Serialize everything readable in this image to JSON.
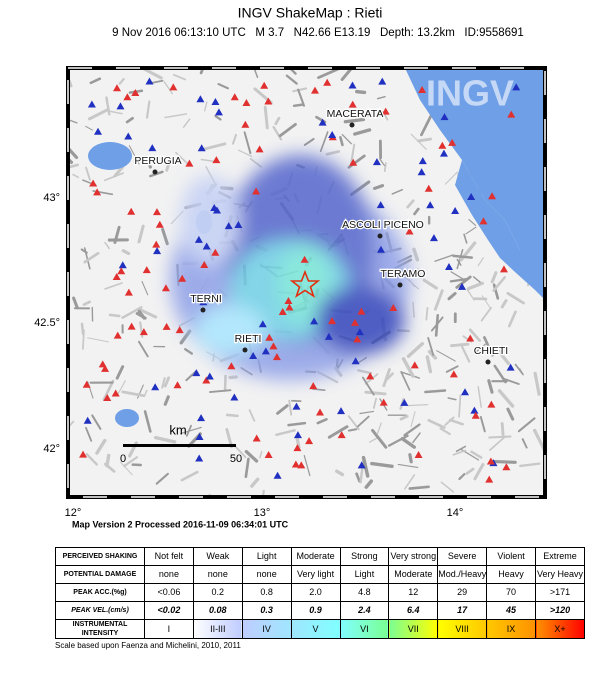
{
  "header": {
    "title": "INGV ShakeMap : Rieti",
    "subtitle": "9 Nov 2016 06:13:10 UTC   M 3.7   N42.66 E13.19   Depth: 13.2km   ID:9558691"
  },
  "map": {
    "watermark": "INGV",
    "lon_ticks": [
      "12°",
      "13°",
      "14°"
    ],
    "lat_ticks": [
      "43°",
      "42.5°",
      "42°"
    ],
    "cities": [
      "MACERATA",
      "PERUGIA",
      "ASCOLI PICENO",
      "TERAMO",
      "TERNI",
      "RIETI",
      "CHIETI"
    ],
    "scale": {
      "unit": "km",
      "start": "0",
      "end": "50"
    }
  },
  "version": "Map Version 2 Processed 2016-11-09 06:34:01 UTC",
  "table": {
    "rows": [
      [
        "PERCEIVED SHAKING",
        "Not felt",
        "Weak",
        "Light",
        "Moderate",
        "Strong",
        "Very strong",
        "Severe",
        "Violent",
        "Extreme"
      ],
      [
        "POTENTIAL DAMAGE",
        "none",
        "none",
        "none",
        "Very light",
        "Light",
        "Moderate",
        "Mod./Heavy",
        "Heavy",
        "Very Heavy"
      ],
      [
        "PEAK ACC.(%g)",
        "<0.06",
        "0.2",
        "0.8",
        "2.0",
        "4.8",
        "12",
        "29",
        "70",
        ">171"
      ],
      [
        "PEAK VEL.(cm/s)",
        "<0.02",
        "0.08",
        "0.3",
        "0.9",
        "2.4",
        "6.4",
        "17",
        "45",
        ">120"
      ],
      [
        "INSTRUMENTAL INTENSITY",
        "I",
        "II-III",
        "IV",
        "V",
        "VI",
        "VII",
        "VIII",
        "IX",
        "X+"
      ]
    ]
  },
  "footnote": "Scale based upon Faenza and Michelini, 2010, 2011"
}
